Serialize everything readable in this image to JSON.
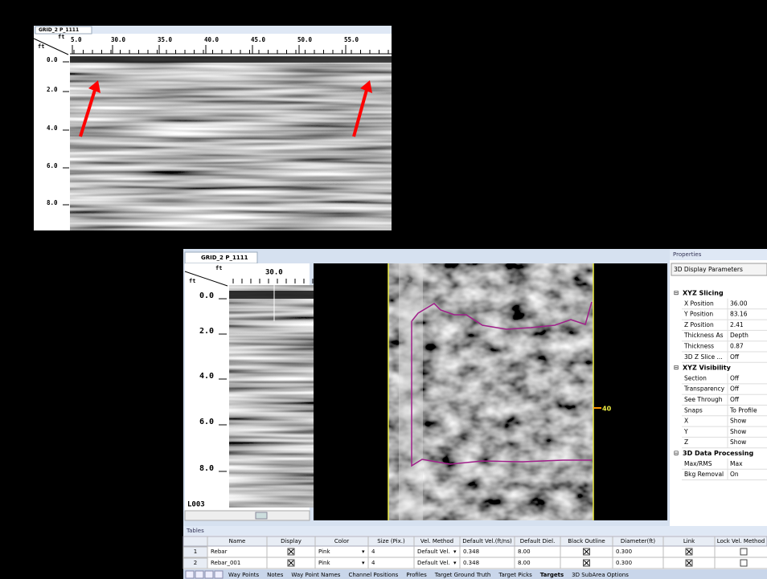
{
  "top_panel": {
    "tab": "GRID_2 P_1111",
    "corner_units": [
      "ft",
      "ft"
    ],
    "x_ticks": [
      "5.0",
      "30.0",
      "35.0",
      "40.0",
      "45.0",
      "50.0",
      "55.0"
    ],
    "y_ticks": [
      "0.0",
      "2.0",
      "4.0",
      "6.0",
      "8.0"
    ]
  },
  "bottom_panel": {
    "tab": "GRID_2 P_1111",
    "corner_units": [
      "ft",
      "ft"
    ],
    "x_ticks": [
      "30.0"
    ],
    "y_ticks": [
      "0.0",
      "2.0",
      "4.0",
      "6.0",
      "8.0"
    ],
    "line_label": "L003",
    "slice_marker": "40"
  },
  "properties": {
    "title": "Properties",
    "dropdown": "3D Display Parameters",
    "sections": [
      {
        "name": "XYZ Slicing",
        "rows": [
          [
            "X Position",
            "36.00"
          ],
          [
            "Y Position",
            "83.16"
          ],
          [
            "Z Position",
            "2.41"
          ],
          [
            "Thickness As",
            "Depth"
          ],
          [
            "Thickness",
            "0.87"
          ],
          [
            "3D Z Slice ...",
            "Off"
          ]
        ]
      },
      {
        "name": "XYZ Visibility",
        "rows": [
          [
            "Section",
            "Off"
          ],
          [
            "Transparency",
            "Off"
          ],
          [
            "See Through",
            "Off"
          ],
          [
            "Snaps",
            "To Profile"
          ],
          [
            "X",
            "Show"
          ],
          [
            "Y",
            "Show"
          ],
          [
            "Z",
            "Show"
          ]
        ]
      },
      {
        "name": "3D Data Processing",
        "rows": [
          [
            "Max/RMS",
            "Max"
          ],
          [
            "Bkg Removal",
            "On"
          ]
        ]
      }
    ]
  },
  "tables": {
    "title": "Tables",
    "columns": [
      "Name",
      "Display",
      "Color",
      "Size (Pix.)",
      "Vel. Method",
      "Default Vel.(ft/ns)",
      "Default Diel.",
      "Black Outline",
      "Diameter(ft)",
      "Link",
      "Lock Vel. Method"
    ],
    "rows": [
      {
        "num": "1",
        "name": "Rebar",
        "color": "Pink",
        "size": "4",
        "vel_method": "Default Vel.",
        "default_vel": "0.348",
        "default_diel": "8.00",
        "diameter": "0.300"
      },
      {
        "num": "2",
        "name": "Rebar_001",
        "color": "Pink",
        "size": "4",
        "vel_method": "Default Vel.",
        "default_vel": "0.348",
        "default_diel": "8.00",
        "diameter": "0.300"
      }
    ],
    "tabs": [
      "Way Points",
      "Notes",
      "Way Point Names",
      "Channel Positions",
      "Profiles",
      "Target Ground Truth",
      "Target Picks",
      "Targets",
      "3D SubArea Options"
    ]
  }
}
